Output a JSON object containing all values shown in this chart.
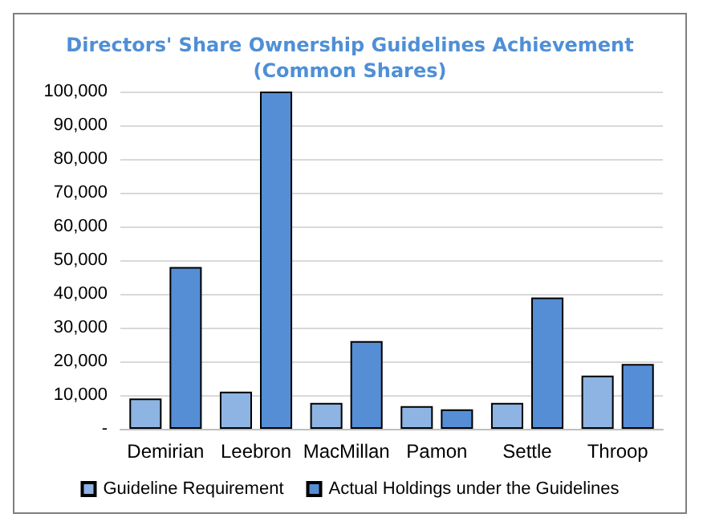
{
  "chart_data": {
    "type": "bar",
    "title": "Directors' Share Ownership Guidelines Achievement\n(Common Shares)",
    "categories": [
      "Demirian",
      "Leebron",
      "MacMillan",
      "Pamon",
      "Settle",
      "Throop"
    ],
    "series": [
      {
        "name": "Guideline Requirement",
        "color": "#8db4e2",
        "values": [
          9000,
          11000,
          7700,
          6700,
          7700,
          15800
        ]
      },
      {
        "name": "Actual Holdings under the Guidelines",
        "color": "#558ed5",
        "values": [
          48000,
          100000,
          26000,
          5800,
          38900,
          19200
        ]
      }
    ],
    "ylim": [
      0,
      100000
    ],
    "yticks": [
      {
        "value": 0,
        "label": "-"
      },
      {
        "value": 10000,
        "label": "10,000"
      },
      {
        "value": 20000,
        "label": "20,000"
      },
      {
        "value": 30000,
        "label": "30,000"
      },
      {
        "value": 40000,
        "label": "40,000"
      },
      {
        "value": 50000,
        "label": "50,000"
      },
      {
        "value": 60000,
        "label": "60,000"
      },
      {
        "value": 70000,
        "label": "70,000"
      },
      {
        "value": 80000,
        "label": "80,000"
      },
      {
        "value": 90000,
        "label": "90,000"
      },
      {
        "value": 100000,
        "label": "100,000"
      }
    ],
    "grid": "y",
    "legend": "bottom"
  }
}
